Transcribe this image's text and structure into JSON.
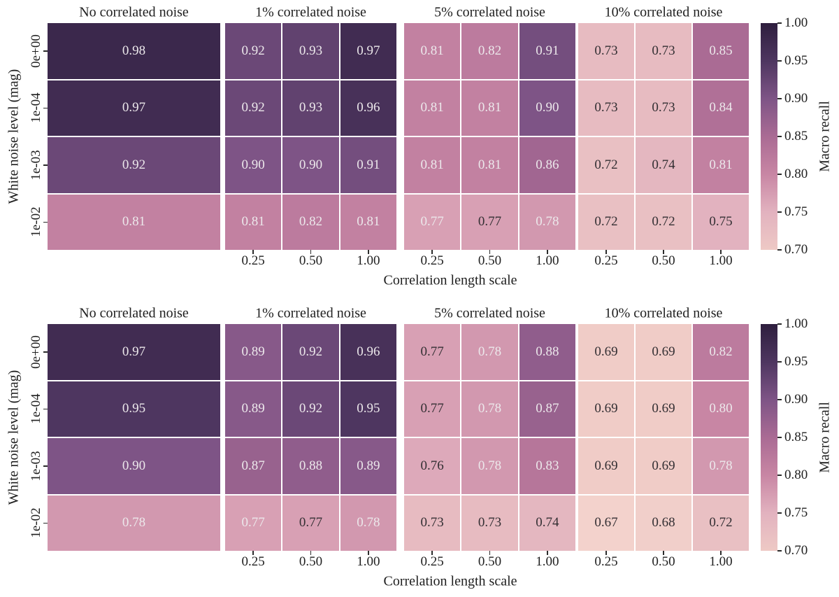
{
  "chart_data": {
    "type": "heatmap",
    "xlabel": "Correlation length scale",
    "ylabel": "White noise level (mag)",
    "colorbar_label": "Macro recall",
    "vmin": 0.7,
    "vmax": 1.0,
    "x_categories": [
      "0.25",
      "0.50",
      "1.00"
    ],
    "y_categories": [
      "0e+00",
      "1e-04",
      "1e-03",
      "1e-02"
    ],
    "colorbar_ticks": [
      "1.00",
      "0.95",
      "0.90",
      "0.85",
      "0.80",
      "0.75",
      "0.70"
    ],
    "colormap_stops": [
      {
        "v": 0.67,
        "c": "#f3d2cc"
      },
      {
        "v": 0.7,
        "c": "#eec9c5"
      },
      {
        "v": 0.75,
        "c": "#e2b2bf"
      },
      {
        "v": 0.8,
        "c": "#c886a4"
      },
      {
        "v": 0.85,
        "c": "#aa6b94"
      },
      {
        "v": 0.9,
        "c": "#7e5486"
      },
      {
        "v": 0.95,
        "c": "#4e3660"
      },
      {
        "v": 1.0,
        "c": "#2e1e3e"
      }
    ],
    "annot_text_colors": {
      "w": "#ece8eb",
      "d": "#332f33"
    },
    "rows": [
      {
        "panels": [
          {
            "title": "No correlated noise",
            "single_column": true,
            "values": [
              [
                0.98
              ],
              [
                0.97
              ],
              [
                0.92
              ],
              [
                0.81
              ]
            ],
            "text_colors": [
              [
                "w"
              ],
              [
                "w"
              ],
              [
                "w"
              ],
              [
                "w"
              ]
            ]
          },
          {
            "title": "1% correlated noise",
            "single_column": false,
            "values": [
              [
                0.92,
                0.93,
                0.97
              ],
              [
                0.92,
                0.93,
                0.96
              ],
              [
                0.9,
                0.9,
                0.91
              ],
              [
                0.81,
                0.82,
                0.81
              ]
            ],
            "text_colors": [
              [
                "w",
                "w",
                "w"
              ],
              [
                "w",
                "w",
                "w"
              ],
              [
                "w",
                "w",
                "w"
              ],
              [
                "w",
                "w",
                "w"
              ]
            ]
          },
          {
            "title": "5% correlated noise",
            "single_column": false,
            "values": [
              [
                0.81,
                0.82,
                0.91
              ],
              [
                0.81,
                0.81,
                0.9
              ],
              [
                0.81,
                0.81,
                0.86
              ],
              [
                0.77,
                0.77,
                0.78
              ]
            ],
            "text_colors": [
              [
                "w",
                "w",
                "w"
              ],
              [
                "w",
                "w",
                "w"
              ],
              [
                "w",
                "w",
                "w"
              ],
              [
                "w",
                "d",
                "w"
              ]
            ]
          },
          {
            "title": "10% correlated noise",
            "single_column": false,
            "values": [
              [
                0.73,
                0.73,
                0.85
              ],
              [
                0.73,
                0.73,
                0.84
              ],
              [
                0.72,
                0.74,
                0.81
              ],
              [
                0.72,
                0.72,
                0.75
              ]
            ],
            "text_colors": [
              [
                "d",
                "d",
                "w"
              ],
              [
                "d",
                "d",
                "w"
              ],
              [
                "d",
                "d",
                "w"
              ],
              [
                "d",
                "d",
                "d"
              ]
            ]
          }
        ]
      },
      {
        "panels": [
          {
            "title": "No correlated noise",
            "single_column": true,
            "values": [
              [
                0.97
              ],
              [
                0.95
              ],
              [
                0.9
              ],
              [
                0.78
              ]
            ],
            "text_colors": [
              [
                "w"
              ],
              [
                "w"
              ],
              [
                "w"
              ],
              [
                "w"
              ]
            ]
          },
          {
            "title": "1% correlated noise",
            "single_column": false,
            "values": [
              [
                0.89,
                0.92,
                0.96
              ],
              [
                0.89,
                0.92,
                0.95
              ],
              [
                0.87,
                0.88,
                0.89
              ],
              [
                0.77,
                0.77,
                0.78
              ]
            ],
            "text_colors": [
              [
                "w",
                "w",
                "w"
              ],
              [
                "w",
                "w",
                "w"
              ],
              [
                "w",
                "w",
                "w"
              ],
              [
                "w",
                "d",
                "w"
              ]
            ]
          },
          {
            "title": "5% correlated noise",
            "single_column": false,
            "values": [
              [
                0.77,
                0.78,
                0.88
              ],
              [
                0.77,
                0.78,
                0.87
              ],
              [
                0.76,
                0.78,
                0.83
              ],
              [
                0.73,
                0.73,
                0.74
              ]
            ],
            "text_colors": [
              [
                "d",
                "w",
                "w"
              ],
              [
                "d",
                "w",
                "w"
              ],
              [
                "d",
                "w",
                "w"
              ],
              [
                "d",
                "d",
                "d"
              ]
            ]
          },
          {
            "title": "10% correlated noise",
            "single_column": false,
            "values": [
              [
                0.69,
                0.69,
                0.82
              ],
              [
                0.69,
                0.69,
                0.8
              ],
              [
                0.69,
                0.69,
                0.78
              ],
              [
                0.67,
                0.68,
                0.72
              ]
            ],
            "text_colors": [
              [
                "d",
                "d",
                "w"
              ],
              [
                "d",
                "d",
                "w"
              ],
              [
                "d",
                "d",
                "w"
              ],
              [
                "d",
                "d",
                "d"
              ]
            ]
          }
        ]
      }
    ]
  }
}
